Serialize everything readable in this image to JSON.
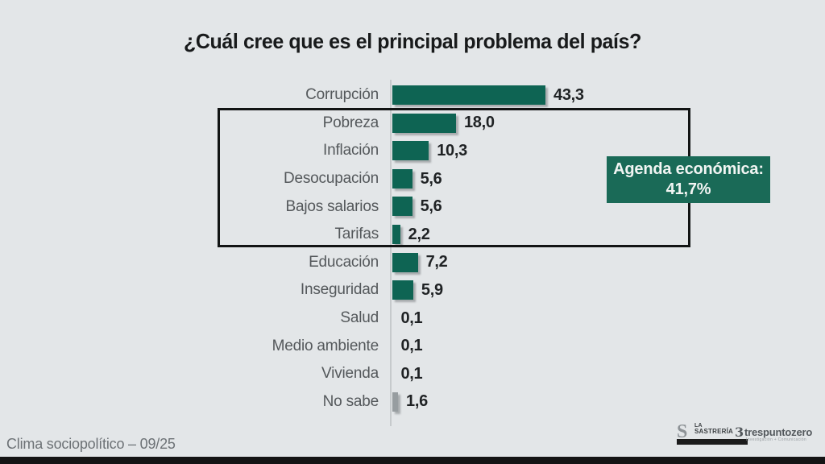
{
  "title": "¿Cuál cree que es el principal problema del país?",
  "chart_data": {
    "type": "bar",
    "orientation": "horizontal",
    "title": "¿Cuál cree que es el principal problema del país?",
    "categories": [
      "Corrupción",
      "Pobreza",
      "Inflación",
      "Desocupación",
      "Bajos salarios",
      "Tarifas",
      "Educación",
      "Inseguridad",
      "Salud",
      "Medio ambiente",
      "Vivienda",
      "No sabe"
    ],
    "values": [
      43.3,
      18.0,
      10.3,
      5.6,
      5.6,
      2.2,
      7.2,
      5.9,
      0.1,
      0.1,
      0.1,
      1.6
    ],
    "value_labels": [
      "43,3",
      "18,0",
      "10,3",
      "5,6",
      "5,6",
      "2,2",
      "7,2",
      "5,9",
      "0,1",
      "0,1",
      "0,1",
      "1,6"
    ],
    "xlim": [
      0,
      45
    ],
    "grid": false,
    "bar_color": "#0e6453",
    "neutral_bar_color": "#979da0",
    "neutral_bar_category": "No sabe",
    "annotation": {
      "label": "Agenda económica:",
      "value": "41,7%",
      "bg_color": "#1a6a57",
      "text_color": "#f2f5f3",
      "grouped_categories": [
        "Pobreza",
        "Inflación",
        "Desocupación",
        "Bajos salarios",
        "Tarifas"
      ]
    }
  },
  "footer": {
    "left_note": "Clima sociopolítico – 09/25",
    "logos": {
      "sastreria_glyph": "S",
      "sastreria_line1": "LA",
      "sastreria_line2": "SASTRERÍA",
      "trespuntozero_mark": "3",
      "trespuntozero_name": "trespuntozero",
      "trespuntozero_sub": "Investigación + Comunicación"
    }
  }
}
